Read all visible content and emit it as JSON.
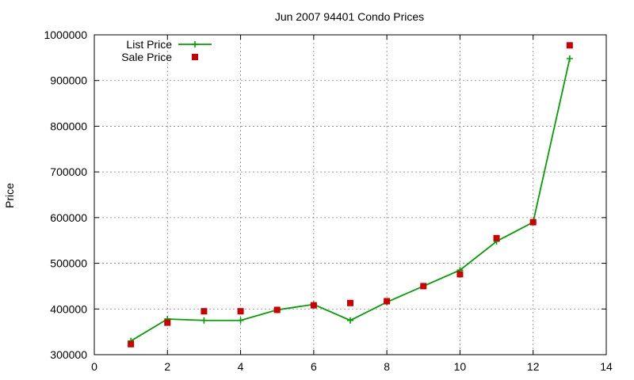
{
  "chart_data": {
    "type": "line",
    "title": "Jun 2007 94401 Condo Prices",
    "xlabel": "",
    "ylabel": "Price",
    "xlim": [
      0,
      14
    ],
    "ylim": [
      300000,
      1000000
    ],
    "x_ticks": [
      0,
      2,
      4,
      6,
      8,
      10,
      12,
      14
    ],
    "y_ticks": [
      300000,
      400000,
      500000,
      600000,
      700000,
      800000,
      900000,
      1000000
    ],
    "grid": true,
    "legend_position": "top-left",
    "x": [
      1,
      2,
      3,
      4,
      5,
      6,
      7,
      8,
      9,
      10,
      11,
      12,
      13
    ],
    "series": [
      {
        "name": "List Price",
        "style": "line+plus",
        "color": "#00a000",
        "values": [
          330000,
          378000,
          375000,
          375000,
          398000,
          410000,
          375000,
          415000,
          450000,
          485000,
          548000,
          590000,
          948000
        ]
      },
      {
        "name": "Sale Price",
        "style": "square",
        "color": "#cc0000",
        "values": [
          323000,
          370000,
          395000,
          395000,
          398000,
          408000,
          413000,
          417000,
          450000,
          476000,
          555000,
          590000,
          977000
        ]
      }
    ]
  }
}
